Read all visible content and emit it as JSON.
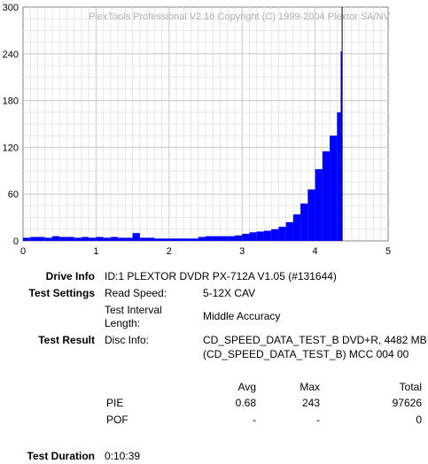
{
  "chart_data": {
    "type": "bar",
    "title": "PlexTools Professional V2.16 Copyright (C) 1999-2004 Plextor SA/NV",
    "xlim": [
      0,
      5
    ],
    "ylim": [
      0,
      300
    ],
    "x_ticks": [
      "0",
      "1",
      "2",
      "3",
      "4",
      "5"
    ],
    "y_ticks": [
      "0",
      "60",
      "120",
      "180",
      "240",
      "300"
    ],
    "grid": true,
    "bar_color": "#0000ff",
    "cursor_x": 4.37,
    "series": [
      {
        "x": [
          0.0,
          0.1,
          0.2,
          0.3,
          0.4,
          0.5,
          0.6,
          0.7,
          0.8,
          0.9,
          1.0,
          1.1,
          1.2,
          1.3,
          1.4,
          1.5,
          1.6,
          1.7,
          1.8,
          1.9,
          2.0,
          2.1,
          2.2,
          2.3,
          2.4,
          2.5,
          2.6,
          2.7,
          2.8,
          2.9,
          3.0,
          3.1,
          3.2,
          3.3,
          3.4,
          3.5,
          3.6,
          3.7,
          3.8,
          3.9,
          4.0,
          4.1,
          4.2,
          4.3,
          4.35
        ],
        "values": [
          4,
          5,
          5,
          4,
          6,
          5,
          5,
          4,
          5,
          4,
          5,
          4,
          5,
          4,
          4,
          10,
          4,
          4,
          3,
          3,
          3,
          3,
          3,
          3,
          5,
          6,
          6,
          6,
          6,
          7,
          9,
          11,
          12,
          13,
          15,
          18,
          24,
          34,
          48,
          66,
          92,
          115,
          135,
          165,
          243
        ]
      }
    ]
  },
  "drive_info": {
    "label": "Drive Info",
    "value": "ID:1 PLEXTOR DVDR PX-712A V1.05 (#131644)"
  },
  "test_settings": {
    "label": "Test Settings",
    "read_speed_label": "Read Speed:",
    "read_speed_value": "5-12X CAV",
    "interval_label": "Test Interval Length:",
    "interval_value": "Middle Accuracy"
  },
  "test_result": {
    "label": "Test Result",
    "disc_info_label": "Disc Info:",
    "disc_info_line1": "CD_SPEED_DATA_TEST_B DVD+R, 4482 MB",
    "disc_info_line2": "(CD_SPEED_DATA_TEST_B) MCC 004 00",
    "headers": {
      "avg": "Avg",
      "max": "Max",
      "total": "Total"
    },
    "rows": [
      {
        "name": "PIE",
        "avg": "0.68",
        "max": "243",
        "total": "97626"
      },
      {
        "name": "POF",
        "avg": "-",
        "max": "-",
        "total": "0"
      }
    ]
  },
  "test_duration": {
    "label": "Test Duration",
    "value": "0:10:39"
  }
}
